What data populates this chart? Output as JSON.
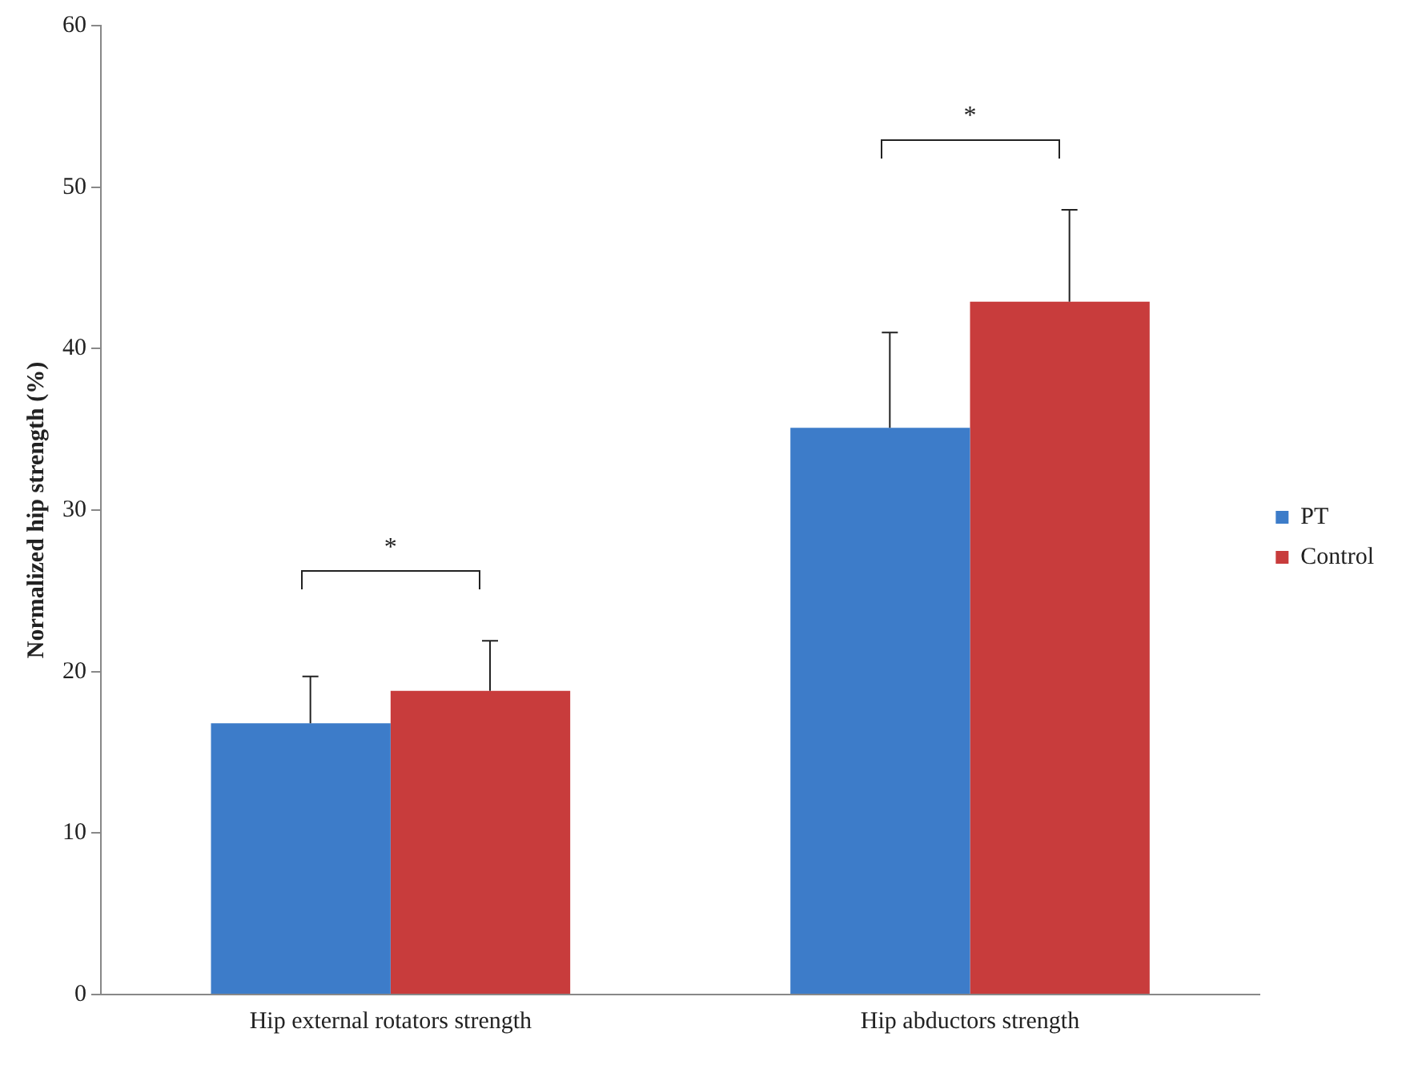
{
  "chart_data": {
    "type": "bar",
    "ylabel": "Normalized hip strength (%)",
    "categories": [
      "Hip external rotators strength",
      "Hip abductors strength"
    ],
    "series": [
      {
        "name": "PT",
        "color": "#3d7cc9",
        "values": [
          16.8,
          35.1
        ],
        "errors": [
          [
            16.8,
            19.7
          ],
          [
            35.1,
            41.0
          ]
        ]
      },
      {
        "name": "Control",
        "color": "#c83c3c",
        "values": [
          18.8,
          42.9
        ],
        "errors": [
          [
            18.8,
            21.9
          ],
          [
            42.9,
            48.6
          ]
        ]
      }
    ],
    "ylim": [
      0,
      60
    ],
    "yticks": [
      0,
      10,
      20,
      30,
      40,
      50,
      60
    ],
    "grid": false,
    "legend": "right",
    "annotations": [
      "*",
      "*"
    ]
  }
}
